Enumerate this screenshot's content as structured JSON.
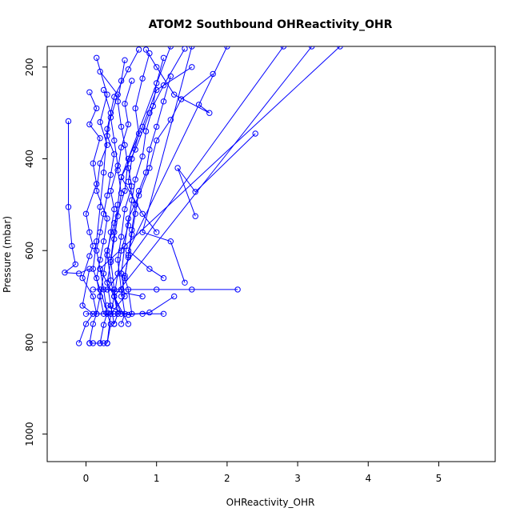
{
  "chart_data": {
    "type": "line",
    "title": "ATOM2 Southbound OHReactivity_OHR",
    "xlabel": "OHReactivity_OHR",
    "ylabel": "Pressure (mbar)",
    "xlim": [
      -0.55,
      5.8
    ],
    "ylim": [
      1060,
      155
    ],
    "y_reversed": true,
    "x_ticks": [
      0,
      1,
      2,
      3,
      4,
      5
    ],
    "y_ticks": [
      200,
      400,
      600,
      800,
      1000
    ],
    "grid": false,
    "legend": "none",
    "color": "#0000ff",
    "markers": "open-circle",
    "series": [
      {
        "values": [
          [
            0.75,
            162
          ],
          [
            0.6,
            205
          ],
          [
            0.4,
            265
          ],
          [
            0.3,
            335
          ],
          [
            0.25,
            430
          ],
          [
            0.2,
            505
          ],
          [
            0.15,
            580
          ],
          [
            0.1,
            640
          ],
          [
            0.2,
            685
          ],
          [
            0.3,
            735
          ],
          [
            0.25,
            762
          ],
          [
            0.2,
            802
          ]
        ]
      },
      {
        "values": [
          [
            1.4,
            160
          ],
          [
            1.1,
            240
          ],
          [
            0.9,
            300
          ],
          [
            0.7,
            380
          ],
          [
            0.5,
            440
          ],
          [
            0.45,
            500
          ],
          [
            0.4,
            560
          ],
          [
            0.35,
            620
          ],
          [
            0.4,
            685
          ],
          [
            0.45,
            738
          ],
          [
            0.4,
            760
          ]
        ]
      },
      {
        "values": [
          [
            1.5,
            200
          ],
          [
            1.0,
            250
          ],
          [
            0.8,
            330
          ],
          [
            0.6,
            400
          ],
          [
            0.55,
            470
          ],
          [
            0.4,
            540
          ],
          [
            0.3,
            600
          ],
          [
            0.25,
            650
          ],
          [
            0.2,
            700
          ],
          [
            0.15,
            738
          ],
          [
            0.1,
            760
          ],
          [
            0.05,
            802
          ]
        ]
      },
      {
        "values": [
          [
            1.8,
            215
          ],
          [
            1.35,
            270
          ],
          [
            1.2,
            315
          ],
          [
            1.0,
            360
          ],
          [
            0.9,
            420
          ],
          [
            0.75,
            480
          ],
          [
            0.6,
            530
          ],
          [
            0.55,
            590
          ],
          [
            0.5,
            650
          ],
          [
            0.55,
            700
          ],
          [
            0.35,
            738
          ],
          [
            0.3,
            802
          ]
        ]
      },
      {
        "values": [
          [
            2.4,
            345
          ],
          [
            1.55,
            472
          ],
          [
            1.3,
            420
          ],
          [
            1.55,
            525
          ]
        ]
      },
      {
        "values": [
          [
            1.6,
            282
          ],
          [
            1.75,
            300
          ],
          [
            1.25,
            260
          ],
          [
            1.0,
            200
          ],
          [
            0.85,
            162
          ]
        ]
      },
      {
        "values": [
          [
            -0.25,
            318
          ],
          [
            -0.25,
            505
          ],
          [
            -0.2,
            590
          ],
          [
            -0.15,
            630
          ],
          [
            -0.3,
            648
          ],
          [
            -0.1,
            650
          ],
          [
            0.05,
            640
          ],
          [
            -0.05,
            720
          ],
          [
            0.1,
            738
          ],
          [
            0.0,
            760
          ],
          [
            -0.1,
            802
          ]
        ]
      },
      {
        "values": [
          [
            0.05,
            255
          ],
          [
            0.15,
            290
          ],
          [
            0.05,
            325
          ],
          [
            0.2,
            355
          ],
          [
            0.1,
            410
          ],
          [
            0.15,
            455
          ],
          [
            0.0,
            520
          ],
          [
            0.05,
            560
          ],
          [
            0.1,
            590
          ],
          [
            0.05,
            612
          ],
          [
            -0.05,
            660
          ],
          [
            0.1,
            700
          ],
          [
            0.15,
            738
          ]
        ]
      },
      {
        "values": [
          [
            0.25,
            250
          ],
          [
            0.35,
            300
          ],
          [
            0.3,
            350
          ],
          [
            0.4,
            390
          ],
          [
            0.35,
            435
          ],
          [
            0.3,
            480
          ],
          [
            0.25,
            520
          ],
          [
            0.2,
            560
          ],
          [
            0.15,
            600
          ],
          [
            0.2,
            640
          ],
          [
            0.25,
            685
          ],
          [
            0.3,
            738
          ],
          [
            0.35,
            760
          ],
          [
            0.3,
            802
          ]
        ]
      },
      {
        "values": [
          [
            0.55,
            185
          ],
          [
            0.5,
            230
          ],
          [
            0.45,
            275
          ],
          [
            0.5,
            330
          ],
          [
            0.55,
            370
          ],
          [
            0.6,
            420
          ],
          [
            0.65,
            460
          ],
          [
            0.55,
            510
          ],
          [
            0.5,
            570
          ],
          [
            0.45,
            620
          ],
          [
            0.5,
            685
          ],
          [
            0.55,
            738
          ],
          [
            0.5,
            760
          ]
        ]
      },
      {
        "values": [
          [
            0.9,
            170
          ],
          [
            0.8,
            225
          ],
          [
            0.7,
            290
          ],
          [
            0.75,
            345
          ],
          [
            0.65,
            400
          ],
          [
            0.6,
            450
          ],
          [
            0.7,
            500
          ],
          [
            0.65,
            555
          ],
          [
            0.6,
            610
          ],
          [
            0.55,
            660
          ],
          [
            0.6,
            685
          ],
          [
            0.65,
            738
          ]
        ]
      },
      {
        "values": [
          [
            1.1,
            180
          ],
          [
            1.0,
            235
          ],
          [
            0.95,
            285
          ],
          [
            0.85,
            340
          ],
          [
            0.8,
            395
          ],
          [
            0.7,
            445
          ],
          [
            0.65,
            490
          ],
          [
            0.6,
            545
          ],
          [
            0.5,
            600
          ],
          [
            0.45,
            650
          ],
          [
            0.4,
            700
          ],
          [
            0.45,
            738
          ]
        ]
      },
      {
        "values": [
          [
            0.15,
            180
          ],
          [
            0.3,
            260
          ],
          [
            0.2,
            320
          ],
          [
            0.3,
            370
          ],
          [
            0.2,
            410
          ],
          [
            0.15,
            470
          ],
          [
            0.3,
            530
          ],
          [
            0.25,
            580
          ],
          [
            0.2,
            620
          ],
          [
            0.15,
            660
          ],
          [
            0.2,
            700
          ],
          [
            0.25,
            738
          ]
        ]
      },
      {
        "values": [
          [
            0.2,
            210
          ],
          [
            0.45,
            260
          ],
          [
            0.35,
            310
          ],
          [
            0.4,
            360
          ],
          [
            0.45,
            415
          ],
          [
            0.35,
            470
          ],
          [
            0.4,
            510
          ],
          [
            0.35,
            560
          ],
          [
            0.3,
            610
          ],
          [
            0.35,
            665
          ],
          [
            0.4,
            700
          ],
          [
            0.35,
            738
          ]
        ]
      },
      {
        "values": [
          [
            0.65,
            230
          ],
          [
            0.55,
            280
          ],
          [
            0.6,
            325
          ],
          [
            0.5,
            375
          ],
          [
            0.45,
            425
          ],
          [
            0.5,
            475
          ],
          [
            0.45,
            525
          ],
          [
            0.4,
            575
          ],
          [
            0.35,
            625
          ],
          [
            0.3,
            670
          ],
          [
            0.35,
            720
          ],
          [
            0.4,
            760
          ]
        ]
      },
      {
        "values": [
          [
            1.2,
            220
          ],
          [
            1.1,
            275
          ],
          [
            1.0,
            330
          ],
          [
            0.9,
            380
          ],
          [
            0.85,
            430
          ],
          [
            0.75,
            470
          ],
          [
            0.7,
            520
          ],
          [
            0.65,
            565
          ],
          [
            0.6,
            615
          ],
          [
            0.55,
            655
          ],
          [
            0.5,
            700
          ]
        ]
      },
      {
        "values": [
          [
            0.1,
            685
          ],
          [
            0.5,
            685
          ],
          [
            1.0,
            685
          ],
          [
            1.5,
            685
          ],
          [
            2.15,
            685
          ]
        ]
      },
      {
        "values": [
          [
            0.0,
            738
          ],
          [
            0.4,
            738
          ],
          [
            0.8,
            738
          ],
          [
            1.1,
            738
          ]
        ]
      },
      {
        "values": [
          [
            3.6,
            155
          ],
          [
            0.2,
            640
          ],
          [
            0.6,
            760
          ]
        ]
      },
      {
        "values": [
          [
            3.2,
            155
          ],
          [
            0.4,
            700
          ],
          [
            0.5,
            738
          ]
        ]
      },
      {
        "values": [
          [
            2.8,
            155
          ],
          [
            0.3,
            685
          ],
          [
            0.8,
            700
          ]
        ]
      },
      {
        "values": [
          [
            2.0,
            155
          ],
          [
            0.6,
            600
          ],
          [
            0.9,
            640
          ],
          [
            1.1,
            660
          ]
        ]
      },
      {
        "values": [
          [
            1.5,
            155
          ],
          [
            0.8,
            560
          ],
          [
            1.2,
            580
          ],
          [
            1.4,
            670
          ]
        ]
      },
      {
        "values": [
          [
            1.2,
            155
          ],
          [
            0.5,
            440
          ],
          [
            0.8,
            520
          ],
          [
            1.0,
            560
          ]
        ]
      },
      {
        "values": [
          [
            0.3,
            720
          ],
          [
            0.6,
            740
          ],
          [
            0.9,
            735
          ],
          [
            1.25,
            700
          ]
        ]
      },
      {
        "values": [
          [
            0.05,
            802
          ],
          [
            0.1,
            802
          ],
          [
            0.2,
            802
          ],
          [
            0.25,
            802
          ],
          [
            0.3,
            802
          ]
        ]
      }
    ]
  }
}
